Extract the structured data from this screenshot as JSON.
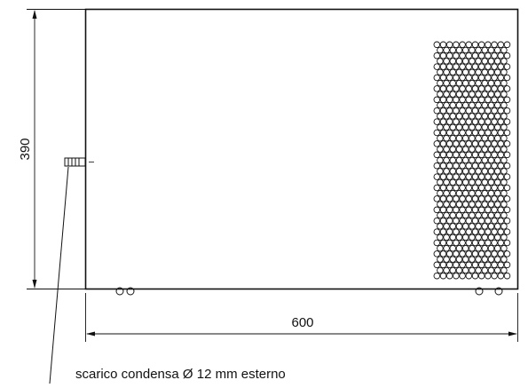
{
  "dimensions": {
    "height_label": "390",
    "width_label": "600"
  },
  "callout": {
    "text": "scarico condensa Ø 12 mm esterno"
  },
  "colors": {
    "line": "#111111",
    "background": "#ffffff"
  }
}
